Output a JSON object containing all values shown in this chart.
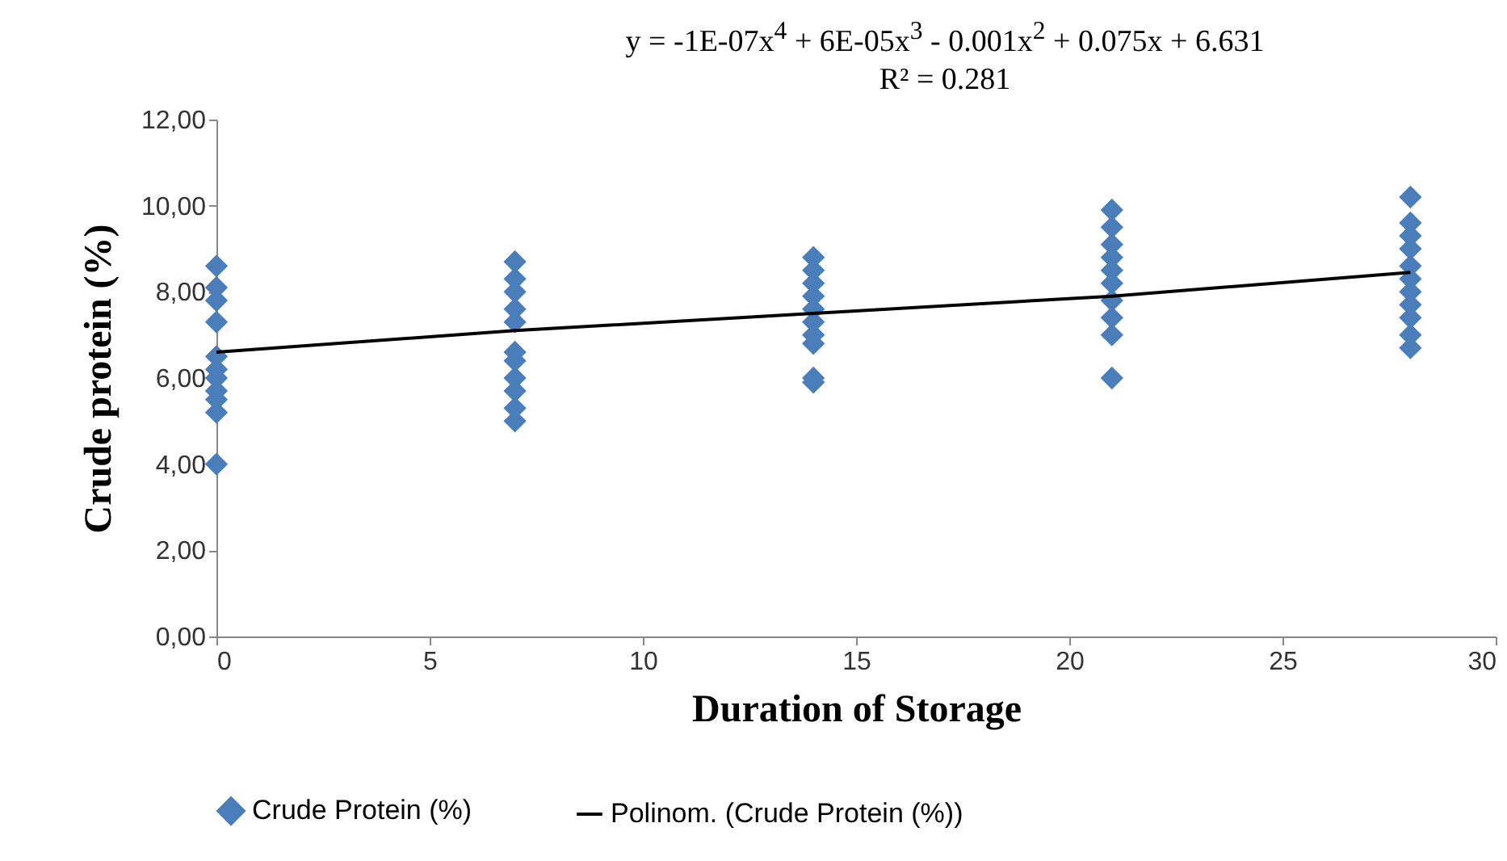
{
  "chart_data": {
    "type": "scatter",
    "xlabel": "Duration of Storage",
    "ylabel": "Crude protein (%)",
    "annotations": [
      "y = -1E-07x$^{4}$ + 6E-05x$^{3}$ - 0.001x$^{2}$ + 0.075x + 6.631",
      "R² = 0.281"
    ],
    "xlim": [
      0,
      30
    ],
    "xticks": [
      0,
      5,
      10,
      15,
      20,
      25,
      30
    ],
    "ylim": [
      0,
      12
    ],
    "yticks": [
      {
        "value": 0,
        "label": "0,00"
      },
      {
        "value": 2,
        "label": "2,00"
      },
      {
        "value": 4,
        "label": "4,00"
      },
      {
        "value": 6,
        "label": "6,00"
      },
      {
        "value": 8,
        "label": "8,00"
      },
      {
        "value": 10,
        "label": "10,00"
      },
      {
        "value": 12,
        "label": "12,00"
      }
    ],
    "grid": false,
    "legend": "bottom",
    "series": [
      {
        "name": "Crude Protein (%)",
        "color": "#4a7ebb",
        "marker": "diamond",
        "x": [
          0,
          0,
          0,
          0,
          0,
          0,
          0,
          0,
          0,
          0,
          0,
          7,
          7,
          7,
          7,
          7,
          7,
          7,
          7,
          7,
          7,
          7,
          14,
          14,
          14,
          14,
          14,
          14,
          14,
          14,
          14,
          14,
          21,
          21,
          21,
          21,
          21,
          21,
          21,
          21,
          21,
          21,
          28,
          28,
          28,
          28,
          28,
          28,
          28,
          28,
          28,
          28,
          28
        ],
        "values": [
          8.6,
          8.1,
          7.8,
          7.3,
          6.5,
          6.2,
          6.0,
          5.7,
          5.5,
          5.2,
          4.0,
          8.7,
          8.3,
          8.0,
          7.6,
          7.3,
          6.6,
          6.4,
          6.0,
          5.7,
          5.3,
          5.0,
          8.8,
          8.5,
          8.2,
          7.9,
          7.6,
          7.3,
          7.0,
          6.8,
          6.0,
          5.9,
          9.9,
          9.5,
          9.1,
          8.8,
          8.5,
          8.2,
          7.8,
          7.4,
          7.0,
          6.0,
          10.2,
          9.6,
          9.3,
          9.0,
          8.6,
          8.3,
          8.0,
          7.7,
          7.4,
          7.0,
          6.7
        ]
      },
      {
        "name": "Polinom. (Crude Protein (%))",
        "color": "#000000",
        "type": "line",
        "x": [
          0,
          7,
          14,
          21,
          28
        ],
        "values": [
          6.6,
          7.1,
          7.5,
          7.9,
          8.45
        ]
      }
    ]
  }
}
